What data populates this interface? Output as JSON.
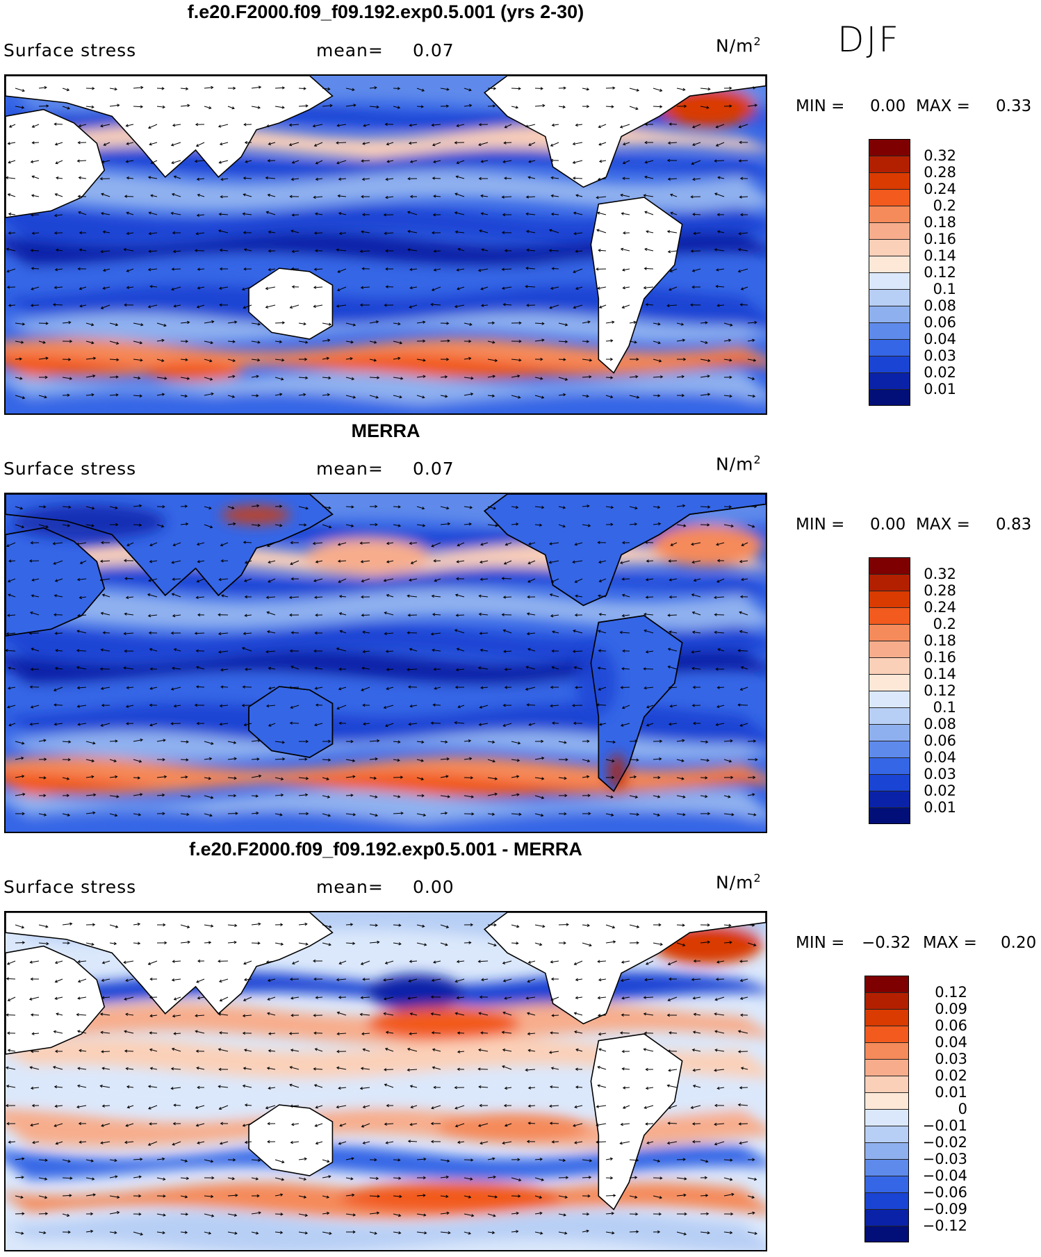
{
  "season": "DJF",
  "panels": [
    {
      "title": "f.e20.F2000.f09_f09.192.exp0.5.001 (yrs 2-30)",
      "variable": "Surface stress",
      "mean_label": "mean=",
      "mean_value": "0.07",
      "units": "N/m",
      "units_sup": "2",
      "min_label": "MIN =",
      "min_value": "0.00",
      "max_label": "MAX =",
      "max_value": "0.33",
      "colorbar_labels": [
        "0.32",
        "0.28",
        "0.24",
        "0.2",
        "0.18",
        "0.16",
        "0.14",
        "0.12",
        "0.1",
        "0.08",
        "0.06",
        "0.04",
        "0.03",
        "0.02",
        "0.01"
      ]
    },
    {
      "title": "MERRA",
      "variable": "Surface stress",
      "mean_label": "mean=",
      "mean_value": "0.07",
      "units": "N/m",
      "units_sup": "2",
      "min_label": "MIN =",
      "min_value": "0.00",
      "max_label": "MAX =",
      "max_value": "0.83",
      "colorbar_labels": [
        "0.32",
        "0.28",
        "0.24",
        "0.2",
        "0.18",
        "0.16",
        "0.14",
        "0.12",
        "0.1",
        "0.08",
        "0.06",
        "0.04",
        "0.03",
        "0.02",
        "0.01"
      ]
    },
    {
      "title": "f.e20.F2000.f09_f09.192.exp0.5.001 - MERRA",
      "variable": "Surface stress",
      "mean_label": "mean=",
      "mean_value": "0.00",
      "units": "N/m",
      "units_sup": "2",
      "min_label": "MIN =",
      "min_value": "−0.32",
      "max_label": "MAX =",
      "max_value": "0.20",
      "colorbar_labels": [
        "0.12",
        "0.09",
        "0.06",
        "0.04",
        "0.03",
        "0.02",
        "0.01",
        "0",
        "−0.01",
        "−0.02",
        "−0.03",
        "−0.04",
        "−0.06",
        "−0.09",
        "−0.12"
      ]
    }
  ],
  "colorbar_colors": [
    "#7f0000",
    "#b32000",
    "#d93b00",
    "#f25a1e",
    "#f58a5a",
    "#f7ad8c",
    "#fbd0b8",
    "#fde8d8",
    "#dbe8fb",
    "#b8cff5",
    "#8fb0ef",
    "#5e8aeb",
    "#3566e6",
    "#1a44d4",
    "#0a22a8",
    "#020f78"
  ],
  "diff_colors": [
    "#7f0000",
    "#b32000",
    "#d93b00",
    "#f25a1e",
    "#f58a5a",
    "#f7ad8c",
    "#fbd0b8",
    "#fde8d8",
    "#dbe8fb",
    "#b8cff5",
    "#8fb0ef",
    "#5e8aeb",
    "#3566e6",
    "#1a44d4",
    "#0a22a8",
    "#020f78"
  ]
}
